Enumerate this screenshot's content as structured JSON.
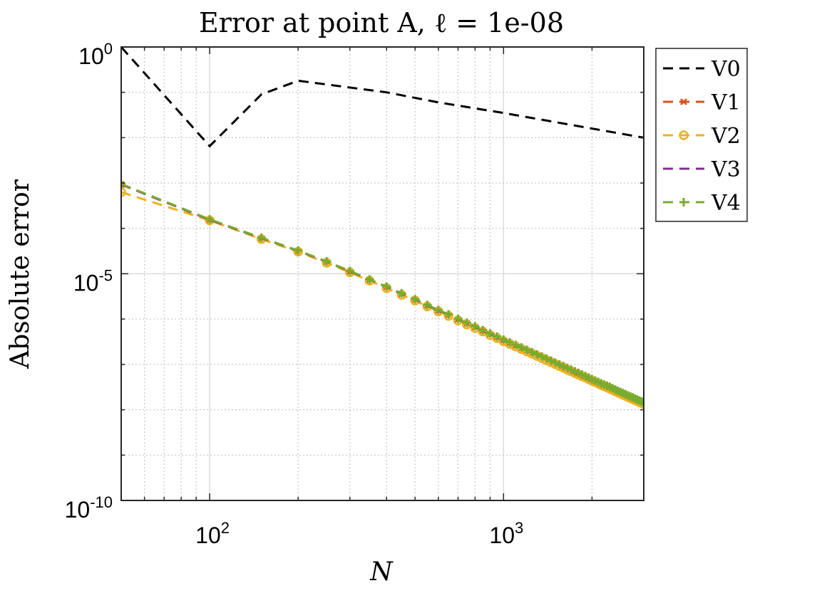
{
  "chart_data": {
    "type": "line",
    "title": "Error at point A, ℓ = 1e-08",
    "xlabel": "N",
    "ylabel": "Absolute error",
    "xscale": "log",
    "yscale": "log",
    "xlim": [
      50,
      3000
    ],
    "ylim": [
      1e-10,
      1
    ],
    "x_ticks": [
      {
        "value": 100,
        "base": "10",
        "exp": "2"
      },
      {
        "value": 1000,
        "base": "10",
        "exp": "3"
      }
    ],
    "y_ticks": [
      {
        "value": 1,
        "base": "10",
        "exp": "0"
      },
      {
        "value": 1e-05,
        "base": "10",
        "exp": "-5"
      },
      {
        "value": 1e-10,
        "base": "10",
        "exp": "-10"
      }
    ],
    "grid": true,
    "legend_position": "outside-top-right",
    "series": [
      {
        "name": "V0",
        "color": "#000000",
        "linestyle": "dashed",
        "marker": "none",
        "x": [
          50,
          100,
          150,
          200,
          400,
          600,
          1000,
          3000
        ],
        "y": [
          1.0,
          0.0065,
          0.09,
          0.18,
          0.1,
          0.06,
          0.035,
          0.01
        ]
      },
      {
        "name": "V1",
        "color": "#D95319",
        "linestyle": "dashed",
        "marker": "x",
        "x": [
          50,
          100,
          150,
          200,
          250,
          300,
          350,
          400,
          450,
          500,
          550,
          600,
          650,
          700,
          750,
          800,
          850,
          900,
          950,
          1000,
          1050,
          1100,
          1150,
          1200,
          1250,
          1300,
          1350,
          1400,
          1450,
          1500,
          1550,
          1600,
          1650,
          1700,
          1750,
          1800,
          1850,
          1900,
          1950,
          2000,
          2050,
          2100,
          2150,
          2200,
          2250,
          2300,
          2350,
          2400,
          2450,
          2500,
          2550,
          2600,
          2650,
          2700,
          2750,
          2800,
          2850,
          2900,
          2950,
          3000
        ],
        "y": [
          0.00093,
          0.000155,
          6.1e-05,
          3.2e-05,
          1.84e-05,
          1.13e-05,
          7.4e-06,
          5.1e-06,
          3.6e-06,
          2.7e-06,
          2e-06,
          1.56e-06,
          1.24e-06,
          9.9e-07,
          8.1e-07,
          6.7e-07,
          5.6e-07,
          4.7e-07,
          4e-07,
          3.45e-07,
          3e-07,
          2.63e-07,
          2.31e-07,
          2.05e-07,
          1.82e-07,
          1.62e-07,
          1.46e-07,
          1.31e-07,
          1.18e-07,
          1.07e-07,
          9.7e-08,
          8.9e-08,
          8.1e-08,
          7.4e-08,
          6.8e-08,
          6.3e-08,
          5.8e-08,
          5.4e-08,
          5e-08,
          4.6e-08,
          4.3e-08,
          4e-08,
          3.7e-08,
          3.5e-08,
          3.3e-08,
          3.1e-08,
          2.9e-08,
          2.7e-08,
          2.55e-08,
          2.4e-08,
          2.27e-08,
          2.14e-08,
          2.03e-08,
          1.92e-08,
          1.82e-08,
          1.73e-08,
          1.64e-08,
          1.56e-08,
          1.49e-08,
          1.42e-08
        ]
      },
      {
        "name": "V2",
        "color": "#EDB120",
        "linestyle": "dashed",
        "marker": "o",
        "x": [
          50,
          100,
          150,
          200,
          250,
          300,
          350,
          400,
          450,
          500,
          550,
          600,
          650,
          700,
          750,
          800,
          850,
          900,
          950,
          1000,
          1050,
          1100,
          1150,
          1200,
          1250,
          1300,
          1350,
          1400,
          1450,
          1500,
          1550,
          1600,
          1650,
          1700,
          1750,
          1800,
          1850,
          1900,
          1950,
          2000,
          2050,
          2100,
          2150,
          2200,
          2250,
          2300,
          2350,
          2400,
          2450,
          2500,
          2550,
          2600,
          2650,
          2700,
          2750,
          2800,
          2850,
          2900,
          2950,
          3000
        ],
        "y": [
          0.00063,
          0.00015,
          5.8e-05,
          3.05e-05,
          1.74e-05,
          1.07e-05,
          7e-06,
          4.8e-06,
          3.4e-06,
          2.55e-06,
          1.9e-06,
          1.47e-06,
          1.17e-06,
          9.3e-07,
          7.6e-07,
          6.3e-07,
          5.3e-07,
          4.4e-07,
          3.8e-07,
          3.25e-07,
          2.82e-07,
          2.47e-07,
          2.18e-07,
          1.93e-07,
          1.71e-07,
          1.53e-07,
          1.37e-07,
          1.23e-07,
          1.11e-07,
          1.01e-07,
          9.1e-08,
          8.4e-08,
          7.6e-08,
          7e-08,
          6.4e-08,
          5.9e-08,
          5.5e-08,
          5.1e-08,
          4.7e-08,
          4.35e-08,
          4.05e-08,
          3.77e-08,
          3.5e-08,
          3.3e-08,
          3.1e-08,
          2.9e-08,
          2.73e-08,
          2.55e-08,
          2.4e-08,
          2.27e-08,
          2.14e-08,
          2.02e-08,
          1.91e-08,
          1.81e-08,
          1.72e-08,
          1.63e-08,
          1.55e-08,
          1.47e-08,
          1.4e-08,
          1.34e-08
        ]
      },
      {
        "name": "V3",
        "color": "#7E2F8E",
        "linestyle": "dashed",
        "marker": "none",
        "x": [
          50,
          100,
          150,
          200,
          250,
          300,
          350,
          400,
          450,
          500,
          550,
          600,
          650,
          700,
          750,
          800,
          850,
          900,
          950,
          1000,
          1050,
          1100,
          1150,
          1200,
          1250,
          1300,
          1350,
          1400,
          1450,
          1500,
          1550,
          1600,
          1650,
          1700,
          1750,
          1800,
          1850,
          1900,
          1950,
          2000,
          2050,
          2100,
          2150,
          2200,
          2250,
          2300,
          2350,
          2400,
          2450,
          2500,
          2550,
          2600,
          2650,
          2700,
          2750,
          2800,
          2850,
          2900,
          2950,
          3000
        ],
        "y": [
          0.00093,
          0.000155,
          6.1e-05,
          3.2e-05,
          1.84e-05,
          1.13e-05,
          7.4e-06,
          5.1e-06,
          3.6e-06,
          2.7e-06,
          2e-06,
          1.56e-06,
          1.24e-06,
          9.9e-07,
          8.1e-07,
          6.7e-07,
          5.6e-07,
          4.7e-07,
          4e-07,
          3.45e-07,
          3e-07,
          2.63e-07,
          2.31e-07,
          2.05e-07,
          1.82e-07,
          1.62e-07,
          1.46e-07,
          1.31e-07,
          1.18e-07,
          1.07e-07,
          9.7e-08,
          8.9e-08,
          8.1e-08,
          7.4e-08,
          6.8e-08,
          6.3e-08,
          5.8e-08,
          5.4e-08,
          5e-08,
          4.6e-08,
          4.3e-08,
          4e-08,
          3.7e-08,
          3.5e-08,
          3.3e-08,
          3.1e-08,
          2.9e-08,
          2.7e-08,
          2.55e-08,
          2.4e-08,
          2.27e-08,
          2.14e-08,
          2.03e-08,
          1.92e-08,
          1.82e-08,
          1.73e-08,
          1.64e-08,
          1.56e-08,
          1.49e-08,
          1.42e-08
        ]
      },
      {
        "name": "V4",
        "color": "#77AC30",
        "linestyle": "dashed",
        "marker": "+",
        "x": [
          50,
          100,
          150,
          200,
          250,
          300,
          350,
          400,
          450,
          500,
          550,
          600,
          650,
          700,
          750,
          800,
          850,
          900,
          950,
          1000,
          1050,
          1100,
          1150,
          1200,
          1250,
          1300,
          1350,
          1400,
          1450,
          1500,
          1550,
          1600,
          1650,
          1700,
          1750,
          1800,
          1850,
          1900,
          1950,
          2000,
          2050,
          2100,
          2150,
          2200,
          2250,
          2300,
          2350,
          2400,
          2450,
          2500,
          2550,
          2600,
          2650,
          2700,
          2750,
          2800,
          2850,
          2900,
          2950,
          3000
        ],
        "y": [
          0.00095,
          0.000158,
          6.2e-05,
          3.25e-05,
          1.87e-05,
          1.15e-05,
          7.5e-06,
          5.2e-06,
          3.7e-06,
          2.75e-06,
          2.05e-06,
          1.59e-06,
          1.27e-06,
          1.01e-06,
          8.3e-07,
          6.9e-07,
          5.7e-07,
          4.8e-07,
          4.1e-07,
          3.52e-07,
          3.06e-07,
          2.69e-07,
          2.36e-07,
          2.09e-07,
          1.86e-07,
          1.66e-07,
          1.49e-07,
          1.34e-07,
          1.21e-07,
          1.09e-07,
          9.9e-08,
          9.1e-08,
          8.3e-08,
          7.6e-08,
          7e-08,
          6.45e-08,
          5.95e-08,
          5.5e-08,
          5.1e-08,
          4.7e-08,
          4.4e-08,
          4.1e-08,
          3.8e-08,
          3.6e-08,
          3.4e-08,
          3.2e-08,
          3e-08,
          2.8e-08,
          2.62e-08,
          2.47e-08,
          2.33e-08,
          2.2e-08,
          2.08e-08,
          1.97e-08,
          1.87e-08,
          1.77e-08,
          1.68e-08,
          1.6e-08,
          1.52e-08,
          1.45e-08
        ]
      }
    ]
  }
}
